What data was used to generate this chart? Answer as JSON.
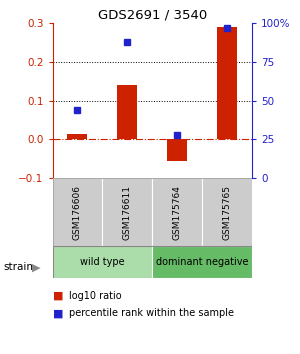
{
  "title": "GDS2691 / 3540",
  "samples": [
    "GSM176606",
    "GSM176611",
    "GSM175764",
    "GSM175765"
  ],
  "log10_ratio": [
    0.015,
    0.14,
    -0.055,
    0.29
  ],
  "percentile_rank": [
    44,
    88,
    28,
    97
  ],
  "groups": [
    {
      "label": "wild type",
      "color": "#aaddaa",
      "start": 0,
      "end": 2
    },
    {
      "label": "dominant negative",
      "color": "#66bb66",
      "start": 2,
      "end": 4
    }
  ],
  "bar_color": "#cc2200",
  "dot_color": "#2222cc",
  "ylim_left": [
    -0.1,
    0.3
  ],
  "ylim_right": [
    0,
    100
  ],
  "yticks_left": [
    -0.1,
    0.0,
    0.1,
    0.2,
    0.3
  ],
  "yticks_right": [
    0,
    25,
    50,
    75,
    100
  ],
  "ytick_labels_right": [
    "0",
    "25",
    "50",
    "75",
    "100%"
  ],
  "hlines": [
    0.1,
    0.2
  ],
  "background_color": "#ffffff",
  "bar_width": 0.4,
  "legend_items": [
    {
      "label": "log10 ratio",
      "color": "#cc2200"
    },
    {
      "label": "percentile rank within the sample",
      "color": "#2222cc"
    }
  ]
}
